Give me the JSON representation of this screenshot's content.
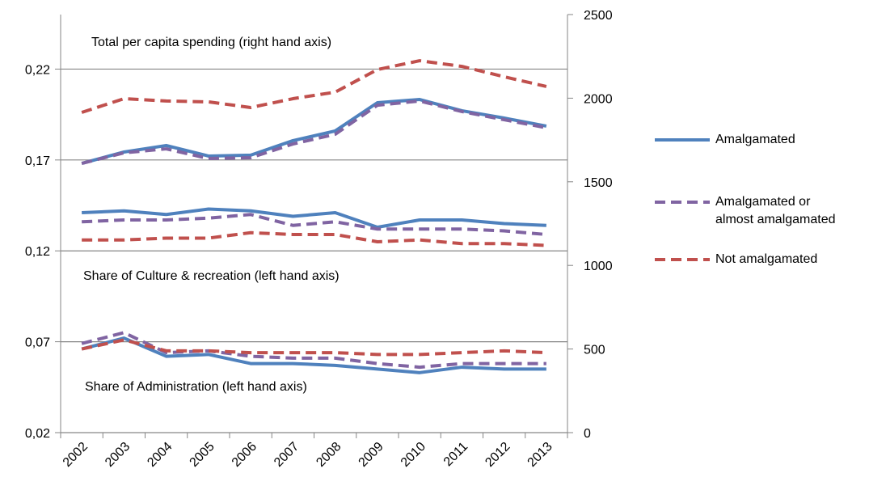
{
  "chart_data": {
    "type": "line",
    "categories": [
      "2002",
      "2003",
      "2004",
      "2005",
      "2006",
      "2007",
      "2008",
      "2009",
      "2010",
      "2011",
      "2012",
      "2013"
    ],
    "annotations": [
      "Total per capita spending (right hand axis)",
      "Share of Culture & recreation (left hand axis)",
      "Share of Administration (left hand axis)"
    ],
    "ylim": [
      0.02,
      0.25
    ],
    "yticks": [
      {
        "value": 0.02,
        "label": "0,02"
      },
      {
        "value": 0.07,
        "label": "0,07"
      },
      {
        "value": 0.12,
        "label": "0,12"
      },
      {
        "value": 0.17,
        "label": "0,17"
      },
      {
        "value": 0.22,
        "label": "0,22"
      }
    ],
    "y2lim": [
      0,
      2500
    ],
    "y2ticks": [
      0,
      500,
      1000,
      1500,
      2000,
      2500
    ],
    "grid": true,
    "legend": "right",
    "series": [
      {
        "name": "Amalgamated",
        "color": "#4f81bd",
        "dashed": false,
        "total": [
          1610,
          1678,
          1717,
          1654,
          1659,
          1746,
          1804,
          1973,
          1992,
          1925,
          1881,
          1833
        ],
        "culture": [
          0.141,
          0.142,
          0.14,
          0.143,
          0.142,
          0.139,
          0.141,
          0.133,
          0.137,
          0.137,
          0.135,
          0.134
        ],
        "administration": [
          0.066,
          0.072,
          0.062,
          0.063,
          0.058,
          0.058,
          0.057,
          0.055,
          0.053,
          0.056,
          0.055,
          0.055
        ]
      },
      {
        "name": "Amalgamated or almost amalgamated",
        "color": "#8064a2",
        "dashed": true,
        "total": [
          1610,
          1673,
          1697,
          1639,
          1644,
          1726,
          1784,
          1958,
          1983,
          1920,
          1871,
          1823
        ],
        "culture": [
          0.136,
          0.137,
          0.137,
          0.138,
          0.14,
          0.134,
          0.136,
          0.132,
          0.132,
          0.132,
          0.131,
          0.129
        ],
        "administration": [
          0.069,
          0.075,
          0.064,
          0.065,
          0.062,
          0.061,
          0.061,
          0.058,
          0.056,
          0.058,
          0.058,
          0.058
        ]
      },
      {
        "name": "Not amalgamated",
        "color": "#c0504d",
        "dashed": true,
        "total": [
          1915,
          1997,
          1983,
          1978,
          1944,
          1997,
          2036,
          2171,
          2224,
          2190,
          2128,
          2070
        ],
        "culture": [
          0.126,
          0.126,
          0.127,
          0.127,
          0.13,
          0.129,
          0.129,
          0.125,
          0.126,
          0.124,
          0.124,
          0.123
        ],
        "administration": [
          0.066,
          0.071,
          0.065,
          0.065,
          0.064,
          0.064,
          0.064,
          0.063,
          0.063,
          0.064,
          0.065,
          0.064
        ]
      }
    ]
  }
}
